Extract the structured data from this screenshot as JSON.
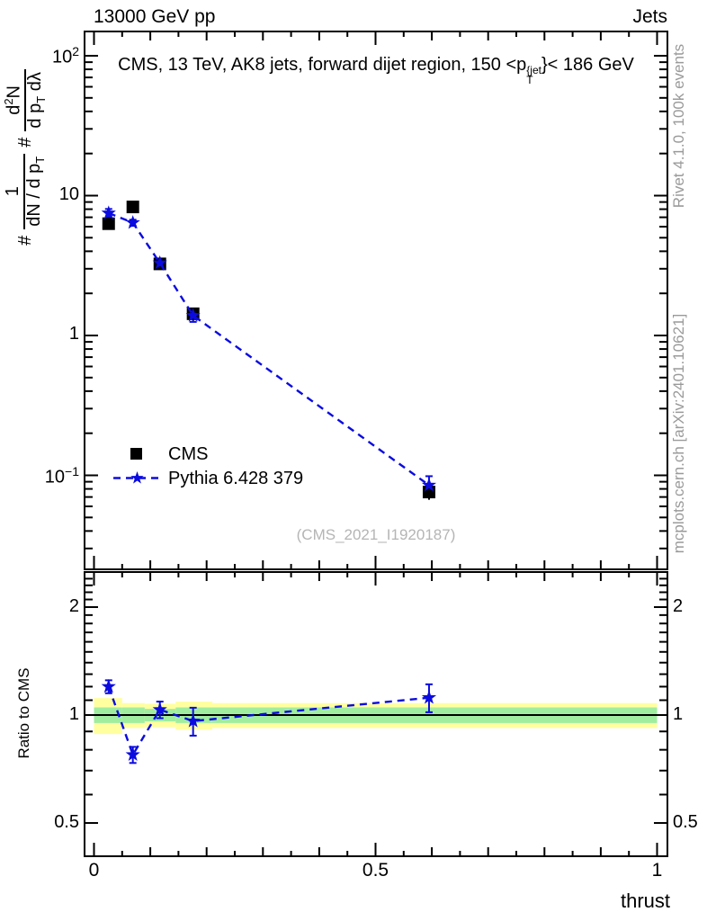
{
  "header": {
    "beam": "13000 GeV pp",
    "category": "Jets"
  },
  "main_panel": {
    "title_prefix": "CMS, 13 TeV, AK8 jets, forward dijet region, 150 <p",
    "title_sup": "{jet",
    "title_sub": "T",
    "title_suffix": "}< 186 GeV",
    "ylabel": {
      "hash_a": "#",
      "f1_num": "1",
      "f1_den": "dN / d p",
      "f1_den_sub": "T",
      "hash_b": "#",
      "f2_num_a": "d",
      "f2_num_sup": "2",
      "f2_num_b": "N",
      "f2_den_a": "d p",
      "f2_den_sub": "T",
      "f2_den_b": " dλ"
    },
    "yticks": [
      {
        "text": "10",
        "sup": "2",
        "value": 100
      },
      {
        "text": "10",
        "sup": "",
        "value": 10
      },
      {
        "text": "1",
        "sup": "",
        "value": 1
      },
      {
        "text": "10",
        "sup": "−1",
        "value": 0.1
      }
    ]
  },
  "ratio_panel": {
    "ylabel": "Ratio to CMS",
    "yticks": [
      {
        "text": "2",
        "value": 2
      },
      {
        "text": "1",
        "value": 1
      },
      {
        "text": "0.5",
        "value": 0.5
      }
    ]
  },
  "xaxis": {
    "label": "thrust",
    "ticks": [
      {
        "text": "0",
        "value": 0
      },
      {
        "text": "0.5",
        "value": 0.5
      },
      {
        "text": "1",
        "value": 1
      }
    ]
  },
  "legend": [
    {
      "label": "CMS",
      "marker": "filled-square",
      "color": "#000000"
    },
    {
      "label": "Pythia 6.428 379",
      "marker": "star-dashed-line",
      "color": "#0b0be0"
    }
  ],
  "watermark": "(CMS_2021_I1920187)",
  "side_notes": {
    "top": "Rivet 4.1.0,  100k events",
    "bottom": "mcplots.cern.ch [arXiv:2401.10621]"
  },
  "colors": {
    "mc_blue": "#0b0be0",
    "band_yellow": "#ffffa0",
    "band_green": "#a0eda0",
    "gray_text": "#9a9a9a"
  },
  "chart_data": [
    {
      "type": "scatter",
      "title": "CMS, 13 TeV, AK8 jets, forward dijet region, 150 < pT^{jet} < 186 GeV",
      "xlabel": "thrust",
      "ylabel": "# 1/(dN/dpT) # d2N/(dpT dlambda)",
      "xscale": "linear",
      "yscale": "log",
      "xlim": [
        -0.017,
        1.019
      ],
      "ylim": [
        0.021,
        149
      ],
      "legend_position": "left-middle",
      "x": [
        0.026,
        0.069,
        0.117,
        0.176,
        0.595
      ],
      "series": [
        {
          "name": "CMS",
          "marker": "filled-square",
          "color": "#000000",
          "y": [
            6.3,
            8.3,
            3.25,
            1.43,
            0.076
          ],
          "yerr_frac": [
            0.04,
            0.03,
            0.04,
            0.06,
            0.12
          ]
        },
        {
          "name": "Pythia 6.428 379",
          "marker": "star",
          "line": "dashed",
          "color": "#0b0be0",
          "y": [
            7.5,
            6.4,
            3.3,
            1.39,
            0.085
          ],
          "yerr_frac": [
            0.07,
            0.05,
            0.06,
            0.1,
            0.16
          ]
        }
      ]
    },
    {
      "type": "ratio",
      "ylabel": "Ratio to CMS",
      "yscale": "log",
      "ylim": [
        0.404,
        2.49
      ],
      "yticks": [
        0.5,
        1,
        2
      ],
      "reference_line": 1,
      "x": [
        0.026,
        0.069,
        0.117,
        0.176,
        0.595
      ],
      "series": [
        {
          "name": "Pythia 6.428 379 / CMS",
          "marker": "star",
          "line": "dashed",
          "color": "#0b0be0",
          "y": [
            1.2,
            0.775,
            1.035,
            0.962,
            1.118
          ],
          "yerr": [
            0.05,
            0.04,
            0.055,
            0.086,
            0.1
          ]
        }
      ],
      "bands": [
        {
          "x0": 0.0,
          "x1": 0.05,
          "yellow": 0.115,
          "green": 0.05
        },
        {
          "x0": 0.05,
          "x1": 0.09,
          "yellow": 0.08,
          "green": 0.05
        },
        {
          "x0": 0.09,
          "x1": 0.145,
          "yellow": 0.075,
          "green": 0.04
        },
        {
          "x0": 0.145,
          "x1": 0.21,
          "yellow": 0.09,
          "green": 0.05
        },
        {
          "x0": 0.21,
          "x1": 1.0,
          "yellow": 0.08,
          "green": 0.05
        }
      ],
      "band_colors": {
        "yellow": "#ffffa0",
        "green": "#a0eda0"
      }
    }
  ]
}
